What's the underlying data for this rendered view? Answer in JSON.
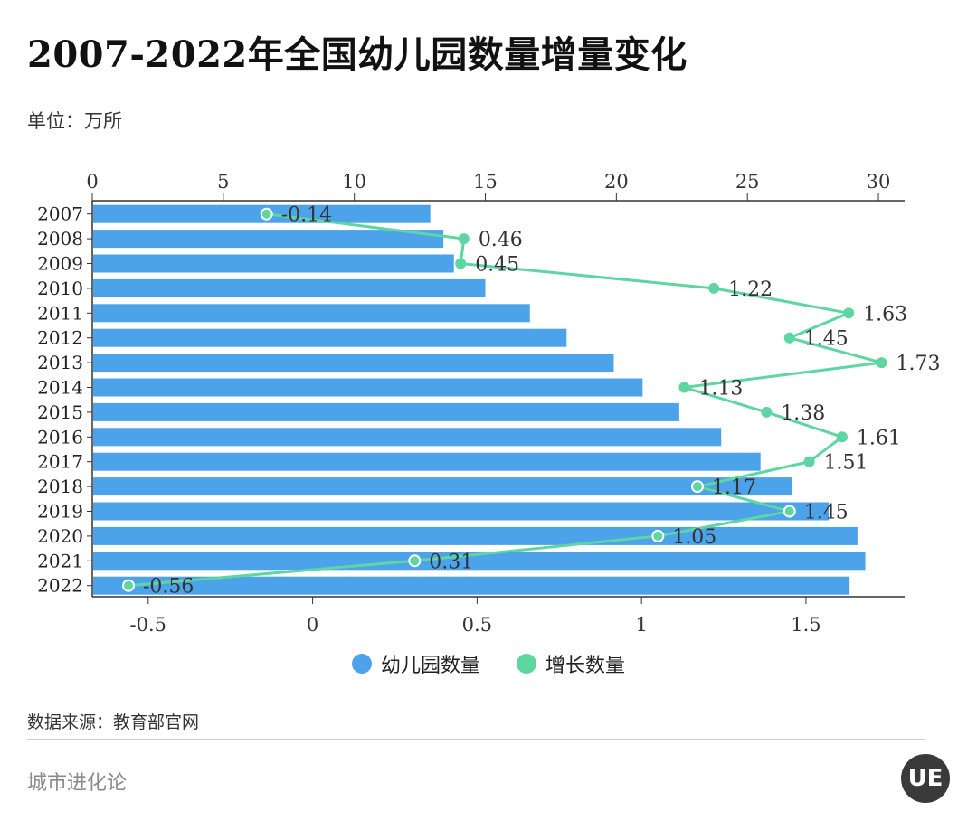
{
  "header": {
    "title": "2007-2022年全国幼儿园数量增量变化",
    "unit": "单位：万所"
  },
  "colors": {
    "bar": "#4da3ea",
    "line": "#5dd6a2",
    "axis": "#333333"
  },
  "legend": {
    "items": [
      {
        "label": "幼儿园数量",
        "color": "#4da3ea"
      },
      {
        "label": "增长数量",
        "color": "#5dd6a2"
      }
    ]
  },
  "source": "数据来源：教育部官网",
  "footer": {
    "brand": "城市进化论",
    "logo_text": "UE"
  },
  "chart_data": {
    "type": "bar",
    "orientation": "horizontal",
    "categories": [
      "2007",
      "2008",
      "2009",
      "2010",
      "2011",
      "2012",
      "2013",
      "2014",
      "2015",
      "2016",
      "2017",
      "2018",
      "2019",
      "2020",
      "2021",
      "2022"
    ],
    "series": [
      {
        "name": "幼儿园数量",
        "type": "bar",
        "axis": "top",
        "values": [
          12.9,
          13.4,
          13.8,
          15.0,
          16.7,
          18.1,
          19.9,
          21.0,
          22.4,
          24.0,
          25.5,
          26.7,
          28.1,
          29.2,
          29.5,
          28.9
        ]
      },
      {
        "name": "增长数量",
        "type": "line",
        "axis": "bottom",
        "values": [
          -0.14,
          0.46,
          0.45,
          1.22,
          1.63,
          1.45,
          1.73,
          1.13,
          1.38,
          1.61,
          1.51,
          1.17,
          1.45,
          1.05,
          0.31,
          -0.56
        ],
        "labels": [
          "-0.14",
          "0.46",
          "0.45",
          "1.22",
          "1.63",
          "1.45",
          "1.73",
          "1.13",
          "1.38",
          "1.61",
          "1.51",
          "1.17",
          "1.45",
          "1.05",
          "0.31",
          "-0.56"
        ]
      }
    ],
    "top_axis": {
      "range": [
        0,
        31
      ],
      "ticks": [
        0,
        5,
        10,
        15,
        20,
        25,
        30
      ],
      "tick_labels": [
        "0",
        "5",
        "10",
        "15",
        "20",
        "25",
        "30"
      ]
    },
    "bottom_axis": {
      "range": [
        -0.67,
        1.8
      ],
      "ticks": [
        -0.5,
        0,
        0.5,
        1,
        1.5
      ],
      "tick_labels": [
        "-0.5",
        "0",
        "0.5",
        "1",
        "1.5"
      ]
    },
    "legend_position": "bottom-center",
    "grid": false
  }
}
